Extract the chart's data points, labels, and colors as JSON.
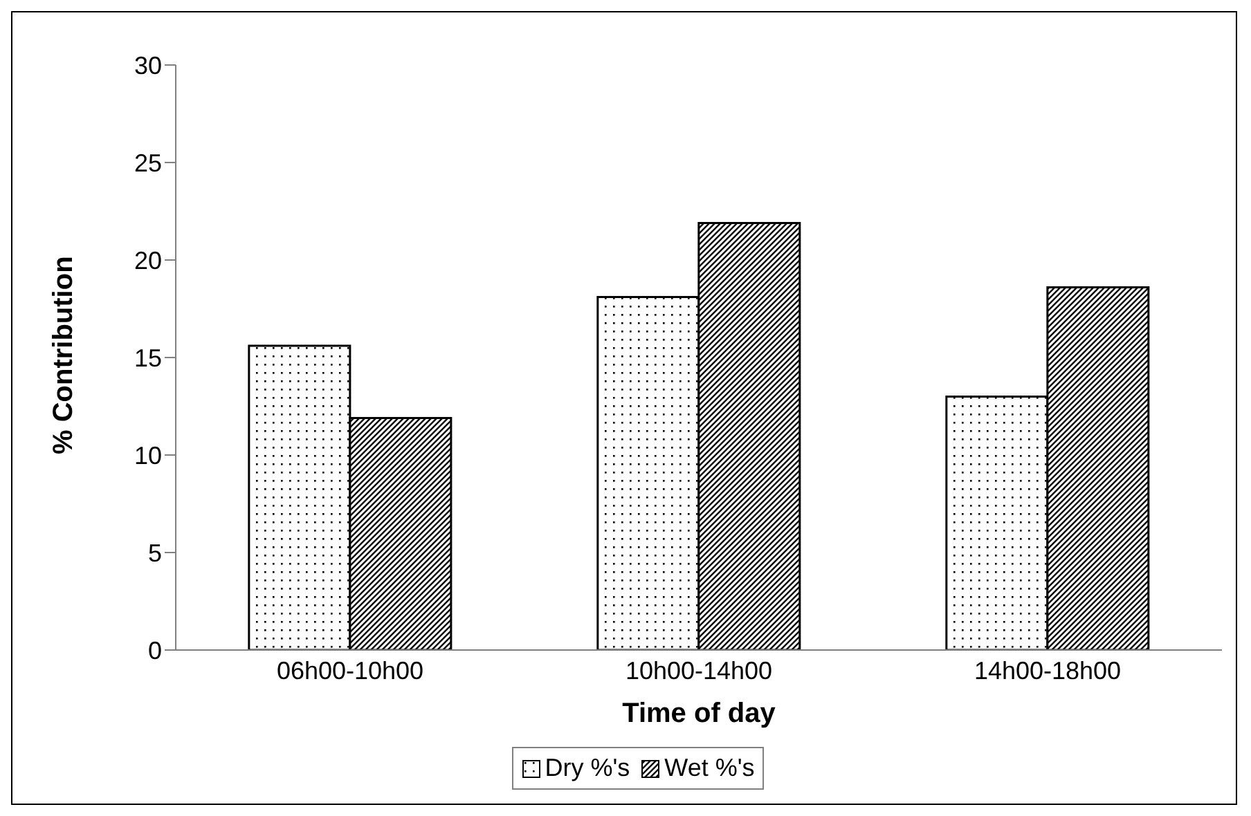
{
  "chart_data": {
    "type": "bar",
    "xlabel": "Time of day",
    "ylabel": "% Contribution",
    "categories": [
      "06h00-10h00",
      "10h00-14h00",
      "14h00-18h00"
    ],
    "series": [
      {
        "name": "Dry %'s",
        "color": "#000000",
        "values": [
          15.6,
          18.1,
          13.0
        ]
      },
      {
        "name": "Wet %'s",
        "color": "#000000",
        "values": [
          11.9,
          21.9,
          18.6
        ]
      }
    ],
    "ylim": [
      0,
      30
    ],
    "yticks": [
      0,
      5,
      10,
      15,
      20,
      25,
      30
    ],
    "grid": false,
    "legend": "bottom"
  }
}
